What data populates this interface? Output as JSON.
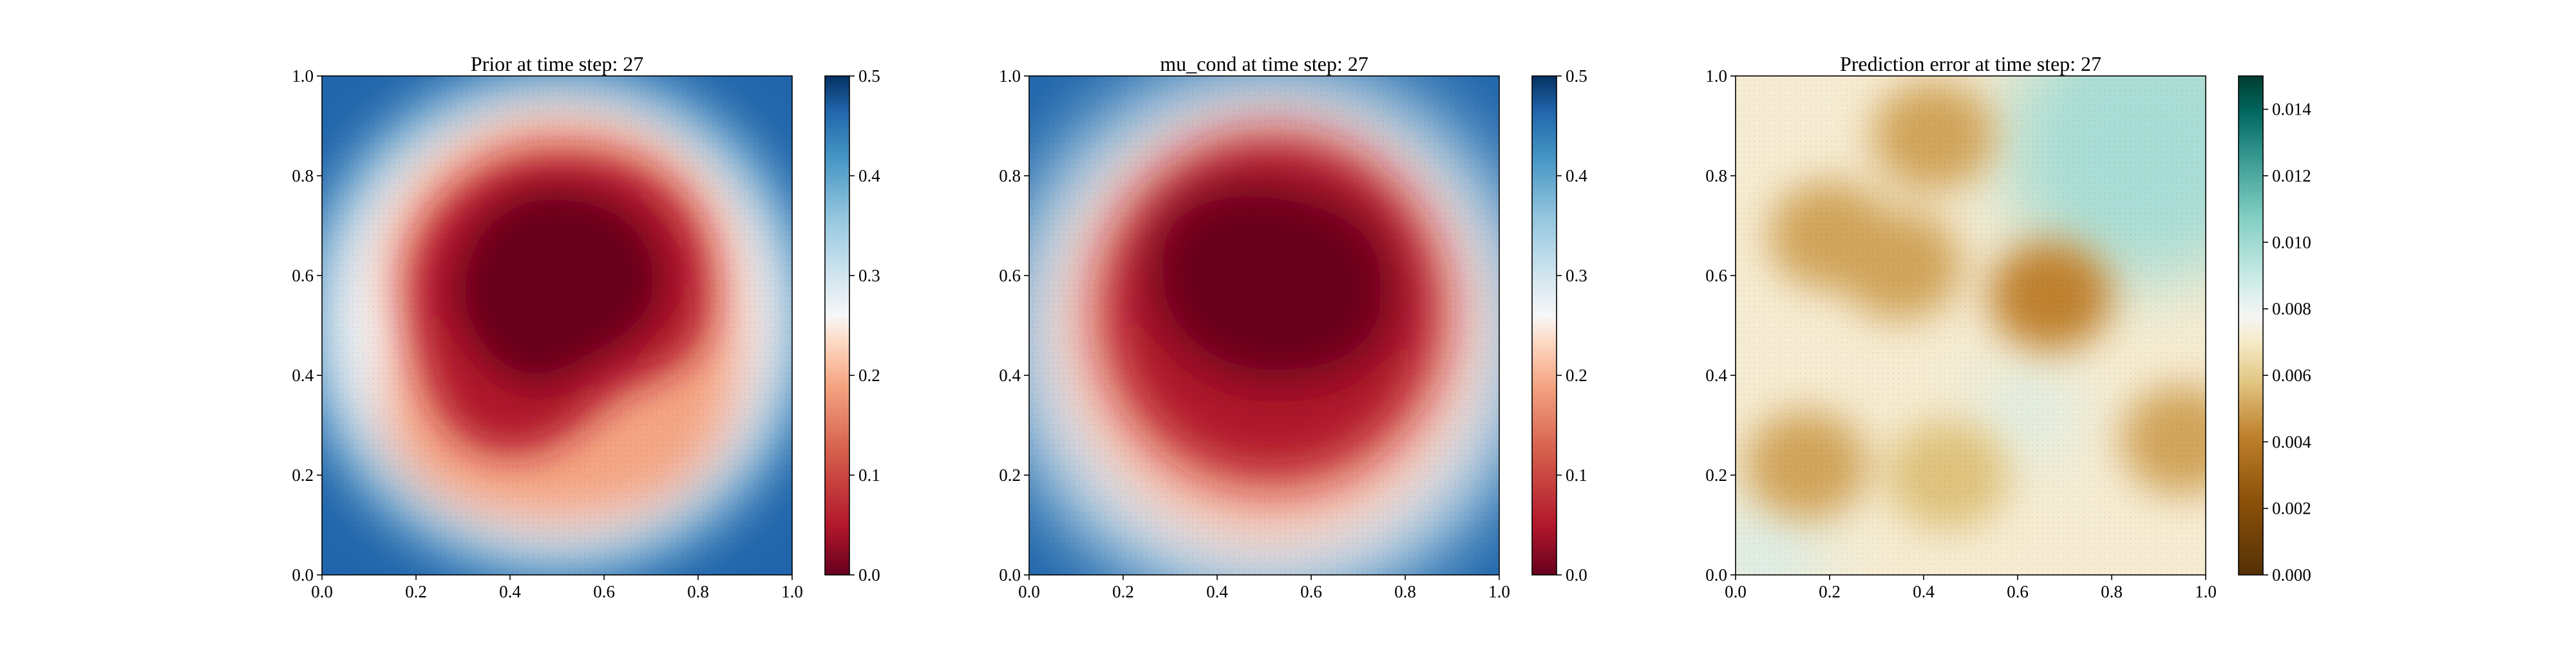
{
  "chart_data": [
    {
      "type": "heatmap",
      "title": "Prior at time step: 27",
      "xlim": [
        0.0,
        1.0
      ],
      "ylim": [
        0.0,
        1.0
      ],
      "xticks": [
        "0.0",
        "0.2",
        "0.4",
        "0.6",
        "0.8",
        "1.0"
      ],
      "yticks": [
        "0.0",
        "0.2",
        "0.4",
        "0.6",
        "0.8",
        "1.0"
      ],
      "colormap": "RdBu",
      "colorbar_range": [
        0.0,
        0.5
      ],
      "colorbar_ticks": [
        "0.0",
        "0.1",
        "0.2",
        "0.3",
        "0.4",
        "0.5"
      ],
      "field": {
        "shape": "irregular blob of low values centered near (0.5, 0.55), higher values toward the corners",
        "center": [
          0.5,
          0.55
        ],
        "radius": 0.3,
        "min_value": 0.0,
        "max_value": 0.5
      }
    },
    {
      "type": "heatmap",
      "title": "mu_cond at time step: 27",
      "xlim": [
        0.0,
        1.0
      ],
      "ylim": [
        0.0,
        1.0
      ],
      "xticks": [
        "0.0",
        "0.2",
        "0.4",
        "0.6",
        "0.8",
        "1.0"
      ],
      "yticks": [
        "0.0",
        "0.2",
        "0.4",
        "0.6",
        "0.8",
        "1.0"
      ],
      "colormap": "RdBu",
      "colorbar_range": [
        0.0,
        0.5
      ],
      "colorbar_ticks": [
        "0.0",
        "0.1",
        "0.2",
        "0.3",
        "0.4",
        "0.5"
      ],
      "field": {
        "shape": "smooth round blob of low values centered near (0.52, 0.55), higher values toward the corners",
        "center": [
          0.52,
          0.55
        ],
        "radius": 0.3,
        "min_value": 0.0,
        "max_value": 0.5
      }
    },
    {
      "type": "heatmap",
      "title": "Prediction error at time step: 27",
      "xlim": [
        0.0,
        1.0
      ],
      "ylim": [
        0.0,
        1.0
      ],
      "xticks": [
        "0.0",
        "0.2",
        "0.4",
        "0.6",
        "0.8",
        "1.0"
      ],
      "yticks": [
        "0.0",
        "0.2",
        "0.4",
        "0.6",
        "0.8",
        "1.0"
      ],
      "colormap": "BrBG",
      "colorbar_range": [
        0.0,
        0.015
      ],
      "colorbar_ticks": [
        "0.000",
        "0.002",
        "0.004",
        "0.006",
        "0.008",
        "0.010",
        "0.012",
        "0.014"
      ],
      "field": {
        "shape": "patchy low-error blobs on a mid-level background, higher error at top-right",
        "hotspots": [
          {
            "x": 0.2,
            "y": 0.68,
            "value": 0.0045
          },
          {
            "x": 0.35,
            "y": 0.62,
            "value": 0.005
          },
          {
            "x": 0.67,
            "y": 0.56,
            "value": 0.004
          },
          {
            "x": 0.42,
            "y": 0.88,
            "value": 0.005
          },
          {
            "x": 0.15,
            "y": 0.22,
            "value": 0.0048
          },
          {
            "x": 0.95,
            "y": 0.27,
            "value": 0.005
          },
          {
            "x": 0.45,
            "y": 0.2,
            "value": 0.0055
          }
        ],
        "high_region": {
          "x": 0.88,
          "y": 0.88,
          "value": 0.0095
        },
        "background_value": 0.0068
      }
    }
  ]
}
